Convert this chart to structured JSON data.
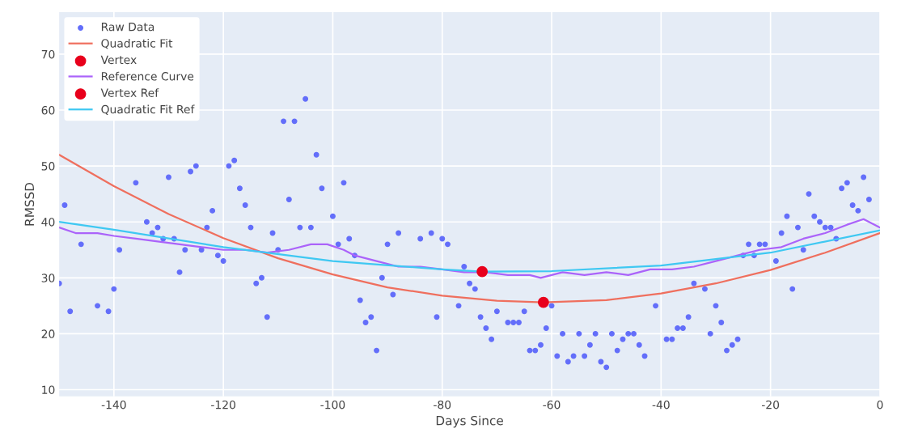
{
  "chart_data": {
    "type": "scatter",
    "xlabel": "Days Since",
    "ylabel": "RMSSD",
    "xlim": [
      -150,
      0
    ],
    "ylim": [
      8.8,
      77.5
    ],
    "xticks": [
      -140,
      -120,
      -100,
      -80,
      -60,
      -40,
      -20,
      0
    ],
    "yticks": [
      10,
      20,
      30,
      40,
      50,
      60,
      70
    ],
    "grid": true,
    "legend": "top left",
    "series": [
      {
        "name": "Raw Data",
        "marker": "circle",
        "color": "#636efa",
        "x": [
          -150,
          -149,
          -148,
          -146,
          -143,
          -141,
          -140,
          -139,
          -136,
          -134,
          -133,
          -132,
          -131,
          -130,
          -129,
          -128,
          -127,
          -126,
          -125,
          -124,
          -123,
          -122,
          -121,
          -120,
          -119,
          -118,
          -117,
          -116,
          -115,
          -114,
          -113,
          -112,
          -111,
          -110,
          -109,
          -108,
          -107,
          -106,
          -105,
          -104,
          -103,
          -102,
          -100,
          -99,
          -98,
          -97,
          -96,
          -95,
          -94,
          -93,
          -92,
          -91,
          -90,
          -89,
          -88,
          -84,
          -82,
          -81,
          -80,
          -79,
          -77,
          -76,
          -75,
          -74,
          -73,
          -72,
          -71,
          -70,
          -68,
          -67,
          -66,
          -65,
          -64,
          -63,
          -62,
          -61,
          -60,
          -59,
          -58,
          -57,
          -56,
          -55,
          -54,
          -53,
          -52,
          -51,
          -50,
          -49,
          -48,
          -47,
          -46,
          -45,
          -44,
          -43,
          -41,
          -39,
          -38,
          -37,
          -36,
          -35,
          -34,
          -32,
          -31,
          -30,
          -29,
          -28,
          -27,
          -26,
          -25,
          -24,
          -23,
          -22,
          -21,
          -19,
          -18,
          -17,
          -16,
          -15,
          -14,
          -13,
          -12,
          -11,
          -10,
          -9,
          -8,
          -7,
          -6,
          -5,
          -4,
          -3,
          -2
        ],
        "values": [
          29,
          43,
          24,
          36,
          25,
          24,
          28,
          35,
          47,
          40,
          38,
          39,
          37,
          48,
          37,
          31,
          35,
          49,
          50,
          35,
          39,
          42,
          34,
          33,
          50,
          51,
          46,
          43,
          39,
          29,
          30,
          23,
          38,
          35,
          58,
          44,
          58,
          39,
          62,
          39,
          52,
          46,
          41,
          36,
          47,
          37,
          34,
          26,
          22,
          23,
          17,
          30,
          36,
          27,
          38,
          37,
          38,
          23,
          37,
          36,
          25,
          32,
          29,
          28,
          23,
          21,
          19,
          24,
          22,
          22,
          22,
          24,
          17,
          17,
          18,
          21,
          25,
          16,
          20,
          15,
          16,
          20,
          16,
          18,
          20,
          15,
          14,
          20,
          17,
          19,
          20,
          20,
          18,
          16,
          25,
          19,
          19,
          21,
          21,
          23,
          29,
          28,
          20,
          25,
          22,
          17,
          18,
          19,
          34,
          36,
          34,
          36,
          36,
          33,
          38,
          41,
          28,
          39,
          35,
          45,
          41,
          40,
          39,
          39,
          37,
          46,
          47,
          43,
          42,
          48,
          44
        ]
      },
      {
        "name": "Quadratic Fit",
        "type": "line",
        "marker": "none",
        "line_style": "solid",
        "color": "#ef6f5e",
        "x": [
          -150,
          -140,
          -130,
          -120,
          -110,
          -100,
          -90,
          -80,
          -70,
          -61.5,
          -50,
          -40,
          -30,
          -20,
          -10,
          0
        ],
        "values": [
          52,
          46.4,
          41.4,
          37.1,
          33.5,
          30.6,
          28.3,
          26.8,
          25.9,
          25.6,
          26.0,
          27.2,
          29.0,
          31.4,
          34.5,
          38.0
        ]
      },
      {
        "name": "Vertex",
        "marker": "circle",
        "color": "#e8001c",
        "x": [
          -61.5
        ],
        "values": [
          25.6
        ]
      },
      {
        "name": "Reference Curve",
        "type": "line",
        "marker": "none",
        "line_style": "solid",
        "color": "#ab63fa",
        "x": [
          -150,
          -147,
          -143,
          -140,
          -136,
          -132,
          -128,
          -124,
          -120,
          -116,
          -112,
          -108,
          -104,
          -101,
          -98,
          -96,
          -92,
          -88,
          -84,
          -80,
          -76,
          -72,
          -68,
          -64,
          -62,
          -58,
          -54,
          -50,
          -46,
          -42,
          -38,
          -34,
          -30,
          -26,
          -22,
          -18,
          -14,
          -10,
          -6,
          -3,
          0
        ],
        "values": [
          39,
          38,
          38,
          37.5,
          37,
          36.5,
          36,
          35.5,
          35,
          35,
          34.5,
          35,
          36,
          36,
          35,
          34,
          33,
          32,
          32,
          31.5,
          31,
          31,
          30.5,
          30.5,
          30,
          31,
          30.5,
          31,
          30.5,
          31.5,
          31.5,
          32,
          33,
          34,
          35,
          35.5,
          37,
          38,
          39.5,
          40.5,
          39
        ]
      },
      {
        "name": "Vertex Ref",
        "marker": "circle",
        "color": "#e8001c",
        "x": [
          -72.7
        ],
        "values": [
          31.1
        ]
      },
      {
        "name": "Quadratic Fit Ref",
        "type": "line",
        "marker": "none",
        "line_style": "solid",
        "color": "#3fc8f2",
        "x": [
          -150,
          -140,
          -120,
          -100,
          -80,
          -72.7,
          -60,
          -40,
          -20,
          0
        ],
        "values": [
          40,
          38.6,
          35.5,
          33,
          31.5,
          31.1,
          31.2,
          32.2,
          34.5,
          38.5
        ]
      }
    ]
  }
}
